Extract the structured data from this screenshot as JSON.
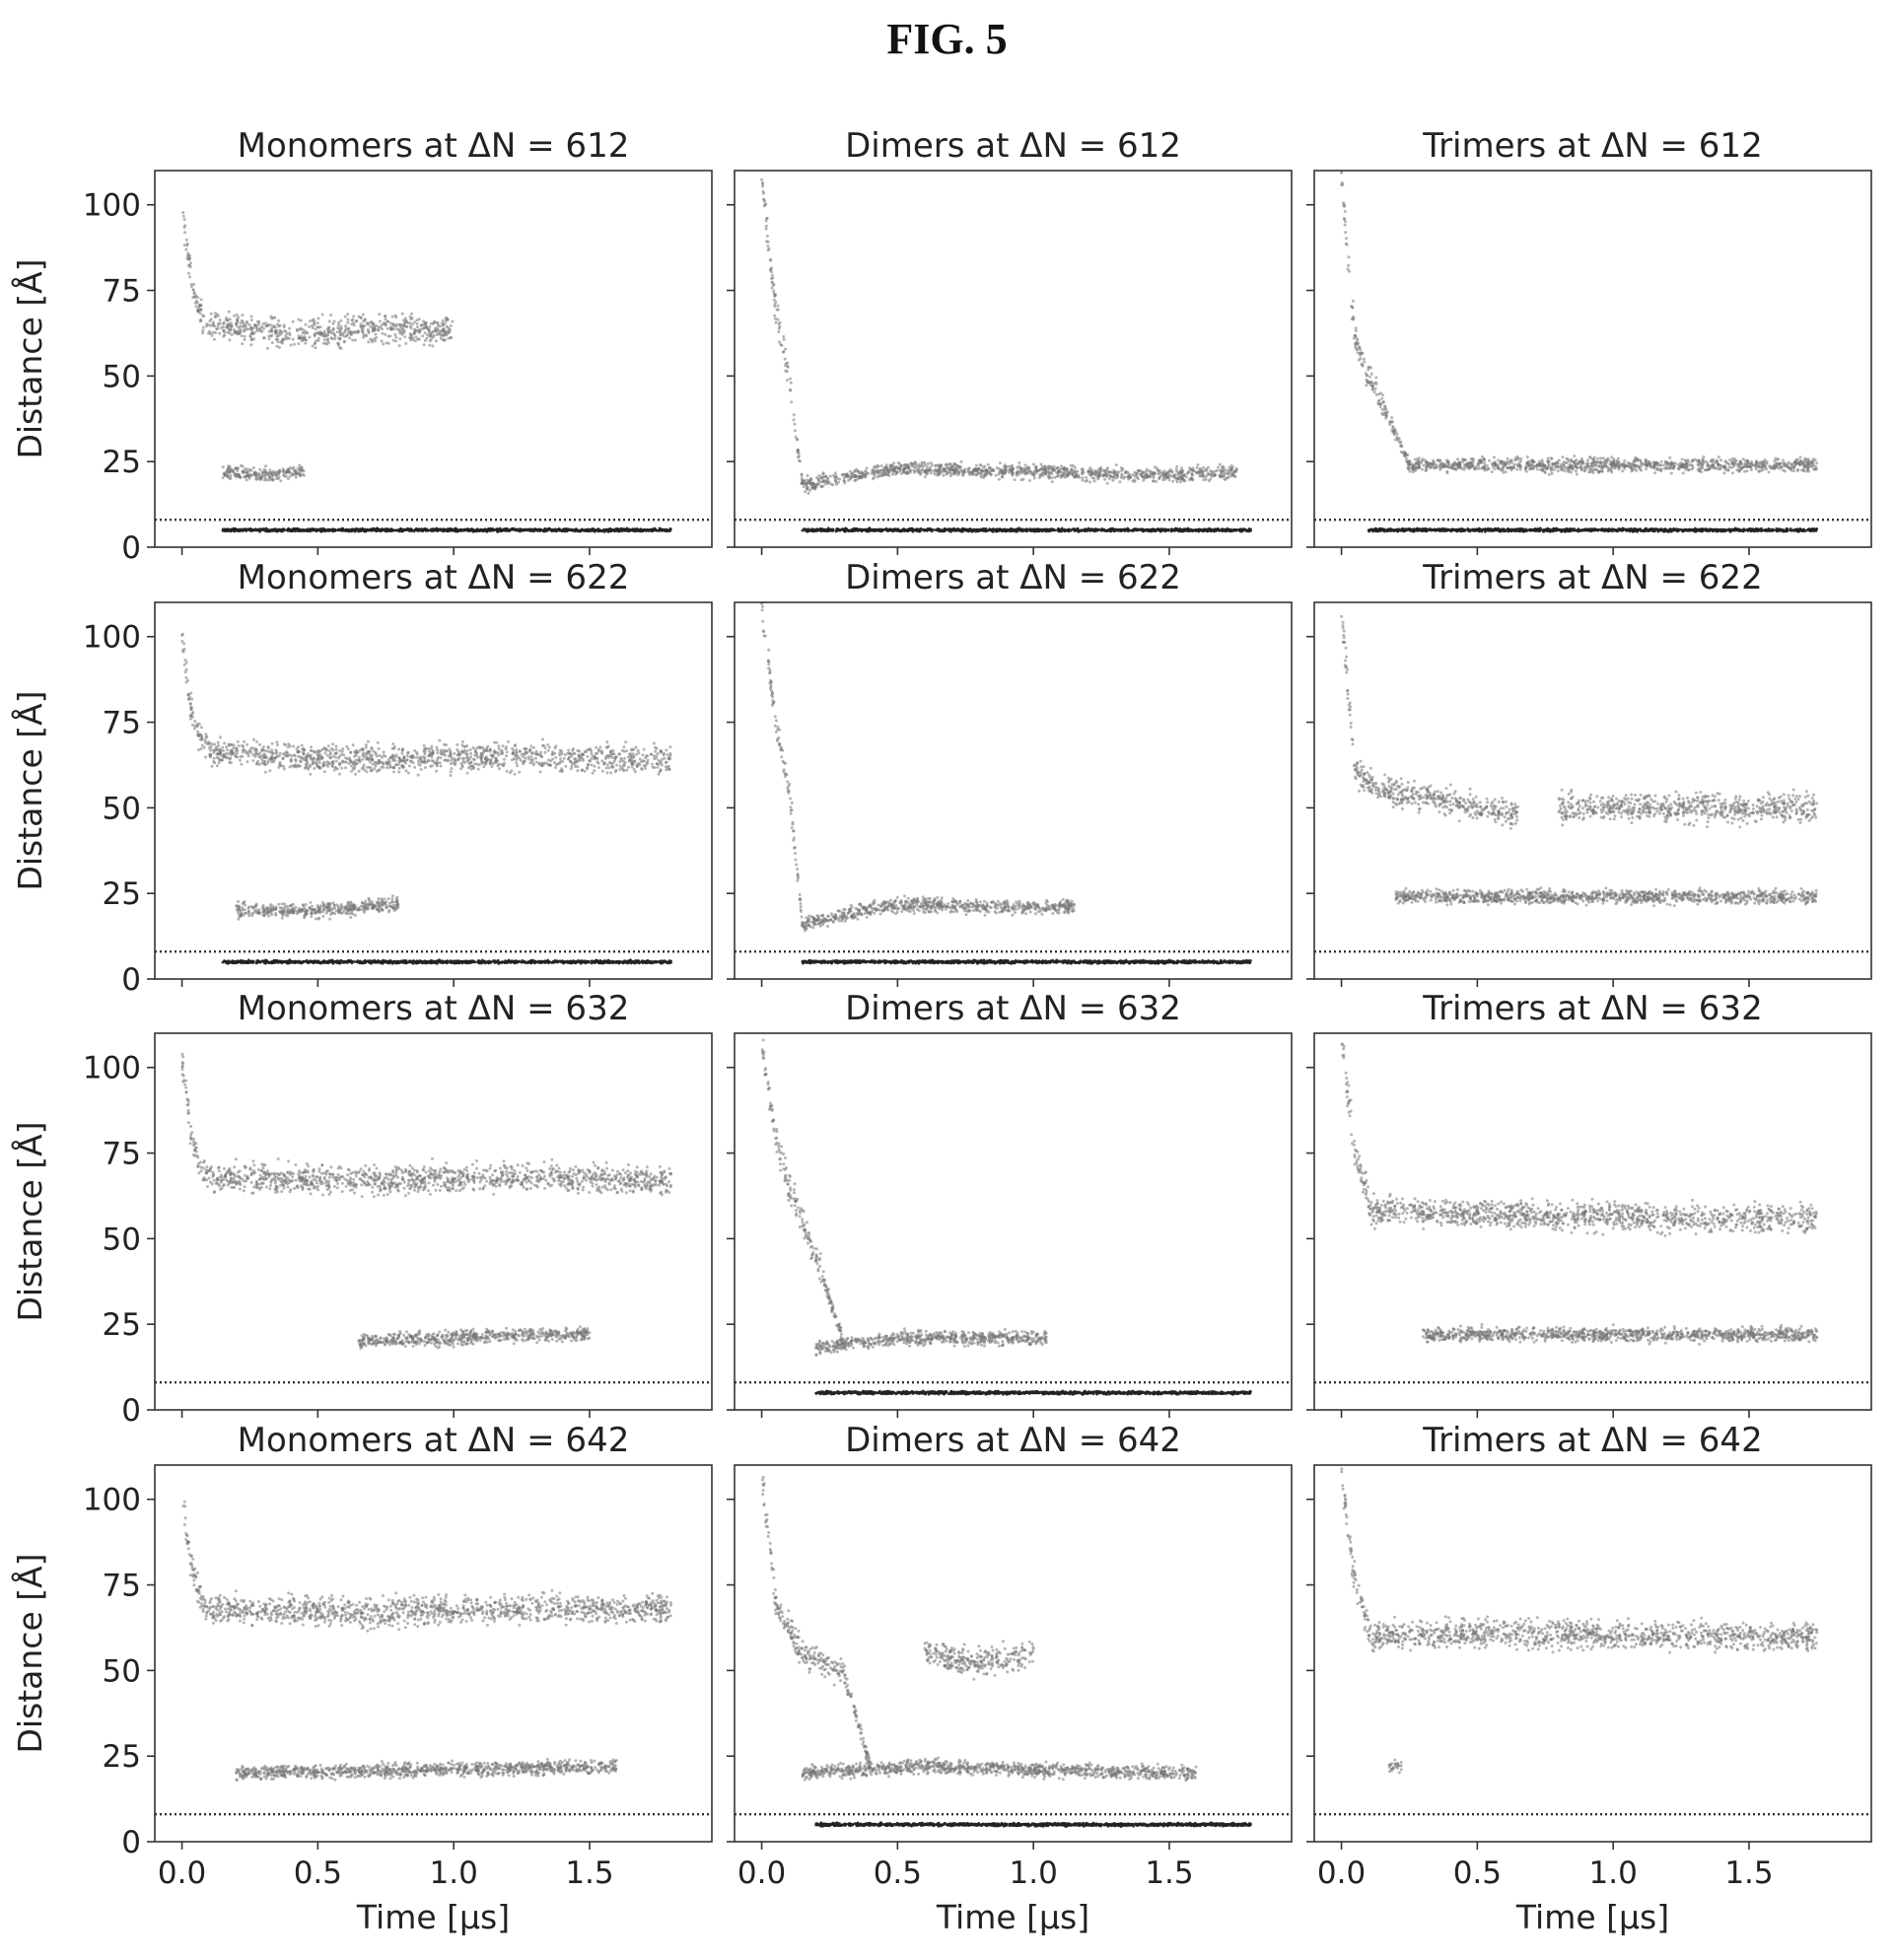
{
  "figure_title": "FIG. 5",
  "chart_data": {
    "type": "scatter",
    "layout": {
      "rows": 4,
      "cols": 3
    },
    "xlim": [
      -0.1,
      1.95
    ],
    "ylim": [
      0,
      110
    ],
    "xticks": [
      0.0,
      0.5,
      1.0,
      1.5
    ],
    "xtick_labels": [
      "0.0",
      "0.5",
      "1.0",
      "1.5"
    ],
    "yticks": [
      0,
      25,
      50,
      75,
      100
    ],
    "ytick_labels": [
      "0",
      "25",
      "50",
      "75",
      "100"
    ],
    "xlabel": "Time [μs]",
    "ylabel": "Distance [Å]",
    "threshold_line": {
      "y": 8,
      "style": "dotted"
    },
    "colors": {
      "points": "#777777",
      "dense": "#222222",
      "threshold": "#333333",
      "frame": "#333333"
    },
    "panels": [
      {
        "id": "mono-612",
        "title": "Monomers at ΔN = 612",
        "xend": 1.15,
        "description": [
          {
            "x": [
              0.0,
              0.02,
              0.05,
              0.08,
              0.1
            ],
            "y": [
              100,
              85,
              72,
              66,
              65
            ]
          },
          {
            "x": [
              0.1,
              0.4,
              0.7,
              1.0
            ],
            "y": [
              65,
              62,
              64,
              63
            ]
          },
          {
            "x": [
              0.15,
              0.3,
              0.45
            ],
            "y": [
              22,
              21,
              22
            ]
          },
          {
            "x": [
              0.15,
              1.8
            ],
            "y": [
              5,
              5
            ]
          }
        ]
      },
      {
        "id": "dimer-612",
        "title": "Dimers at ΔN = 612",
        "xend": 1.78,
        "description": [
          {
            "x": [
              0.0,
              0.05,
              0.1,
              0.15
            ],
            "y": [
              108,
              70,
              50,
              18
            ]
          },
          {
            "x": [
              0.15,
              0.5,
              1.0,
              1.5,
              1.75
            ],
            "y": [
              18,
              23,
              22,
              21,
              22
            ]
          },
          {
            "x": [
              0.15,
              1.8
            ],
            "y": [
              5,
              5
            ]
          }
        ]
      },
      {
        "id": "trimer-612",
        "title": "Trimers at ΔN = 612",
        "xend": 1.75,
        "description": [
          {
            "x": [
              0.0,
              0.05,
              0.1,
              0.25
            ],
            "y": [
              108,
              60,
              50,
              24
            ]
          },
          {
            "x": [
              0.25,
              0.75,
              1.25,
              1.75
            ],
            "y": [
              24,
              24,
              24,
              24
            ]
          },
          {
            "x": [
              0.1,
              1.75
            ],
            "y": [
              5,
              5
            ]
          }
        ]
      },
      {
        "id": "mono-622",
        "title": "Monomers at ΔN = 622",
        "xend": 1.8,
        "description": [
          {
            "x": [
              0.0,
              0.03,
              0.07,
              0.1
            ],
            "y": [
              102,
              80,
              70,
              67
            ]
          },
          {
            "x": [
              0.1,
              0.6,
              1.2,
              1.8
            ],
            "y": [
              66,
              64,
              65,
              64
            ]
          },
          {
            "x": [
              0.2,
              0.5,
              0.8
            ],
            "y": [
              20,
              20,
              22
            ]
          },
          {
            "x": [
              0.15,
              1.8
            ],
            "y": [
              5,
              5
            ]
          }
        ]
      },
      {
        "id": "dimer-622",
        "title": "Dimers at ΔN = 622",
        "xend": 1.78,
        "description": [
          {
            "x": [
              0.0,
              0.05,
              0.1,
              0.15
            ],
            "y": [
              108,
              75,
              55,
              16
            ]
          },
          {
            "x": [
              0.15,
              0.5,
              0.8,
              1.15
            ],
            "y": [
              16,
              22,
              21,
              21
            ]
          },
          {
            "x": [
              0.15,
              1.8
            ],
            "y": [
              5,
              5
            ]
          }
        ]
      },
      {
        "id": "trimer-622",
        "title": "Trimers at ΔN = 622",
        "xend": 1.75,
        "description": [
          {
            "x": [
              0.0,
              0.05,
              0.15,
              0.4,
              0.65
            ],
            "y": [
              108,
              60,
              55,
              52,
              48
            ]
          },
          {
            "x": [
              0.2,
              0.7,
              1.2,
              1.75
            ],
            "y": [
              24,
              24,
              24,
              24
            ]
          },
          {
            "x": [
              0.8,
              1.25,
              1.75
            ],
            "y": [
              50,
              50,
              50
            ]
          }
        ]
      },
      {
        "id": "mono-632",
        "title": "Monomers at ΔN = 632",
        "xend": 1.8,
        "description": [
          {
            "x": [
              0.0,
              0.03,
              0.07,
              0.1
            ],
            "y": [
              102,
              82,
              70,
              68
            ]
          },
          {
            "x": [
              0.1,
              0.6,
              1.2,
              1.8
            ],
            "y": [
              68,
              67,
              68,
              67
            ]
          },
          {
            "x": [
              0.65,
              1.3,
              1.5
            ],
            "y": [
              20,
              22,
              22
            ]
          }
        ]
      },
      {
        "id": "dimer-632",
        "title": "Dimers at ΔN = 632",
        "xend": 1.78,
        "description": [
          {
            "x": [
              0.0,
              0.05,
              0.1,
              0.2,
              0.3
            ],
            "y": [
              108,
              80,
              65,
              45,
              20
            ]
          },
          {
            "x": [
              0.2,
              0.5,
              1.05
            ],
            "y": [
              18,
              21,
              21
            ]
          },
          {
            "x": [
              0.2,
              1.8
            ],
            "y": [
              5,
              5
            ]
          }
        ]
      },
      {
        "id": "trimer-632",
        "title": "Trimers at ΔN = 632",
        "xend": 1.75,
        "description": [
          {
            "x": [
              0.0,
              0.05,
              0.1
            ],
            "y": [
              108,
              75,
              62
            ]
          },
          {
            "x": [
              0.1,
              0.6,
              1.2,
              1.75
            ],
            "y": [
              58,
              57,
              56,
              56
            ]
          },
          {
            "x": [
              0.3,
              0.8,
              1.3,
              1.75
            ],
            "y": [
              22,
              22,
              22,
              22
            ]
          }
        ]
      },
      {
        "id": "mono-642",
        "title": "Monomers at ΔN = 642",
        "xend": 1.8,
        "description": [
          {
            "x": [
              0.0,
              0.03,
              0.07,
              0.1
            ],
            "y": [
              102,
              82,
              70,
              68
            ]
          },
          {
            "x": [
              0.1,
              0.6,
              1.2,
              1.8
            ],
            "y": [
              68,
              67,
              68,
              68
            ]
          },
          {
            "x": [
              0.2,
              1.6
            ],
            "y": [
              20,
              22
            ]
          }
        ]
      },
      {
        "id": "dimer-642",
        "title": "Dimers at ΔN = 642",
        "xend": 1.78,
        "description": [
          {
            "x": [
              0.0,
              0.05,
              0.15,
              0.3,
              0.4
            ],
            "y": [
              108,
              70,
              55,
              50,
              22
            ]
          },
          {
            "x": [
              0.15,
              0.6,
              1.0,
              1.6
            ],
            "y": [
              20,
              22,
              21,
              20
            ]
          },
          {
            "x": [
              0.6,
              0.8,
              1.0
            ],
            "y": [
              55,
              52,
              55
            ]
          },
          {
            "x": [
              0.2,
              1.8
            ],
            "y": [
              5,
              5
            ]
          }
        ]
      },
      {
        "id": "trimer-642",
        "title": "Trimers at ΔN = 642",
        "xend": 1.75,
        "description": [
          {
            "x": [
              0.0,
              0.05,
              0.1
            ],
            "y": [
              108,
              75,
              62
            ]
          },
          {
            "x": [
              0.1,
              0.6,
              1.2,
              1.75
            ],
            "y": [
              60,
              61,
              60,
              60
            ]
          },
          {
            "x": [
              0.2
            ],
            "y": [
              22
            ]
          }
        ]
      }
    ]
  }
}
